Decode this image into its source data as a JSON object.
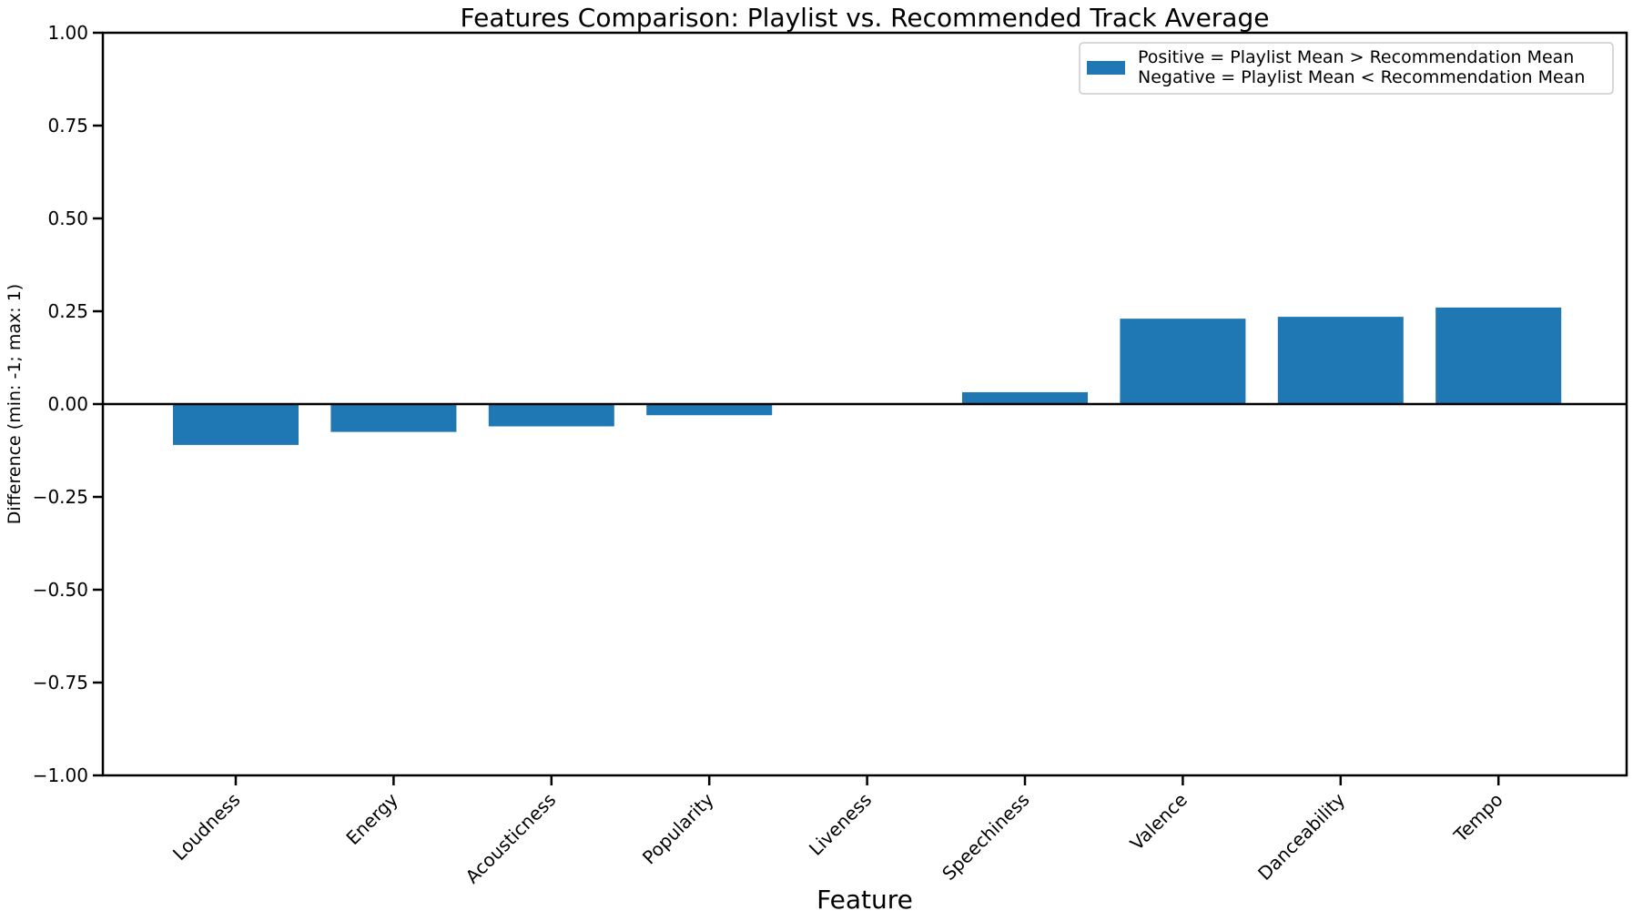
{
  "chart_data": {
    "type": "bar",
    "title": "Features Comparison: Playlist vs. Recommended Track Average",
    "xlabel": "Feature",
    "ylabel": "Difference (min: -1; max: 1)",
    "ylim": [
      -1.0,
      1.0
    ],
    "yticks": [
      1.0,
      0.75,
      0.5,
      0.25,
      0.0,
      -0.25,
      -0.5,
      -0.75,
      -1.0
    ],
    "ytick_labels": [
      "1.00",
      "0.75",
      "0.50",
      "0.25",
      "0.00",
      "−0.25",
      "−0.50",
      "−0.75",
      "−1.00"
    ],
    "categories": [
      "Loudness",
      "Energy",
      "Acousticness",
      "Popularity",
      "Liveness",
      "Speechiness",
      "Valence",
      "Danceability",
      "Tempo"
    ],
    "values": [
      -0.11,
      -0.075,
      -0.06,
      -0.03,
      0.0,
      0.032,
      0.23,
      0.235,
      0.26
    ],
    "bar_color": "#1f77b4",
    "zero_line": true,
    "grid": false,
    "legend": {
      "placement": "top-right",
      "lines": [
        "Positive = Playlist Mean > Recommendation Mean",
        "Negative = Playlist Mean < Recommendation Mean"
      ]
    }
  }
}
